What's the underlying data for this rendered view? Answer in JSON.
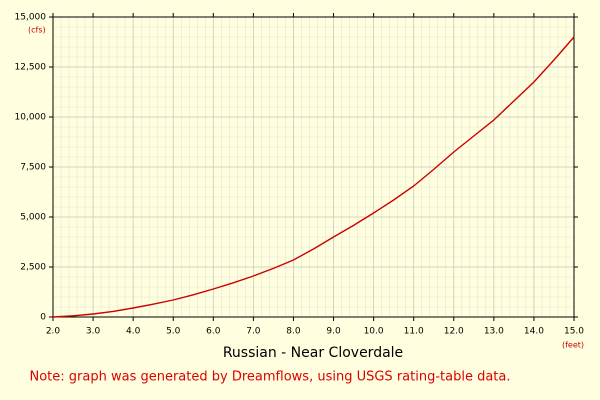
{
  "chart_data": {
    "type": "line",
    "title": "Russian - Near Cloverdale",
    "note": "Note: graph was generated by Dreamflows, using USGS rating-table data.",
    "y_unit": "(cfs)",
    "x_unit": "(feet)",
    "x": [
      2.0,
      2.5,
      3.0,
      3.5,
      4.0,
      4.5,
      5.0,
      5.5,
      6.0,
      6.5,
      7.0,
      7.5,
      8.0,
      8.5,
      9.0,
      9.5,
      10.0,
      10.5,
      11.0,
      11.5,
      12.0,
      12.5,
      13.0,
      13.5,
      14.0,
      14.5,
      15.0
    ],
    "series": [
      {
        "color": "#cc0000",
        "values": [
          0,
          60,
          150,
          280,
          450,
          640,
          850,
          1110,
          1400,
          1710,
          2050,
          2430,
          2850,
          3400,
          4000,
          4580,
          5200,
          5850,
          6550,
          7380,
          8250,
          9050,
          9850,
          10800,
          11750,
          12850,
          14000
        ]
      }
    ],
    "xlim": [
      2.0,
      15.0
    ],
    "xticks": [
      {
        "value": 2,
        "label": "2.0"
      },
      {
        "value": 3,
        "label": "3.0"
      },
      {
        "value": 4,
        "label": "4.0"
      },
      {
        "value": 5,
        "label": "5.0"
      },
      {
        "value": 6,
        "label": "6.0"
      },
      {
        "value": 7,
        "label": "7.0"
      },
      {
        "value": 8,
        "label": "8.0"
      },
      {
        "value": 9,
        "label": "9.0"
      },
      {
        "value": 10,
        "label": "10.0"
      },
      {
        "value": 11,
        "label": "11.0"
      },
      {
        "value": 12,
        "label": "12.0"
      },
      {
        "value": 13,
        "label": "13.0"
      },
      {
        "value": 14,
        "label": "14.0"
      },
      {
        "value": 15,
        "label": "15.0"
      }
    ],
    "ylim": [
      0,
      15000
    ],
    "yticks": [
      0,
      {
        "value": 2500,
        "label": "2,500"
      },
      {
        "value": 5000,
        "label": "5,000"
      },
      {
        "value": 7500,
        "label": "7,500"
      },
      {
        "value": 10000,
        "label": "10,000"
      },
      {
        "value": 12500,
        "label": "12,500"
      },
      {
        "value": 15000,
        "label": "15,000"
      }
    ],
    "grid": true
  }
}
